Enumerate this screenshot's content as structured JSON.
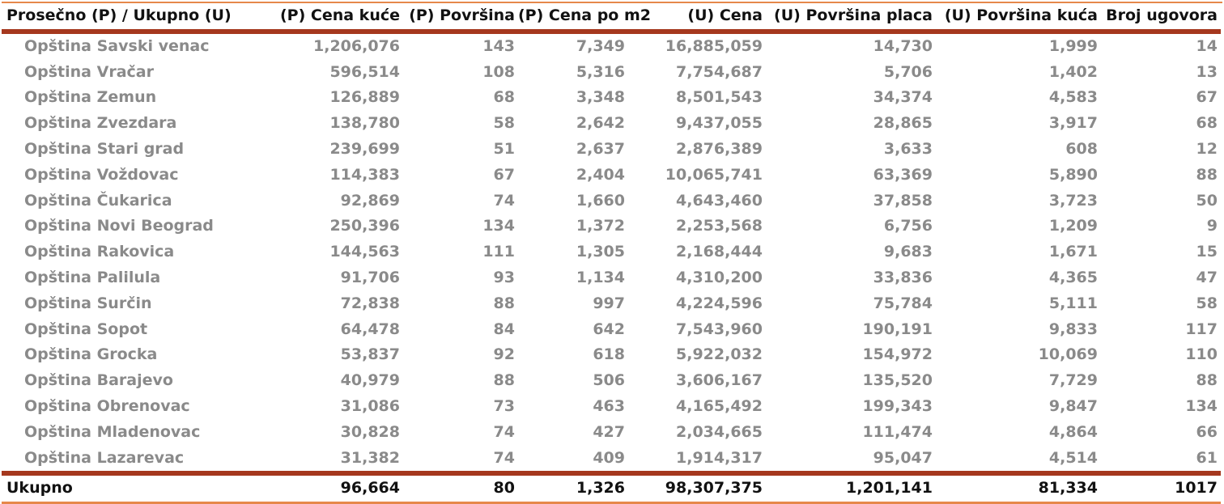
{
  "table": {
    "headers": [
      "Prosečno (P) / Ukupno (U)",
      "(P) Cena kuće",
      "(P) Površina",
      "(P) Cena po m2",
      "(U) Cena",
      "(U) Površina placa",
      "(U) Površina kuća",
      "Broj ugovora"
    ],
    "rows": [
      [
        "Opština Savski venac",
        "1,206,076",
        "143",
        "7,349",
        "16,885,059",
        "14,730",
        "1,999",
        "14"
      ],
      [
        "Opština Vračar",
        "596,514",
        "108",
        "5,316",
        "7,754,687",
        "5,706",
        "1,402",
        "13"
      ],
      [
        "Opština Zemun",
        "126,889",
        "68",
        "3,348",
        "8,501,543",
        "34,374",
        "4,583",
        "67"
      ],
      [
        "Opština Zvezdara",
        "138,780",
        "58",
        "2,642",
        "9,437,055",
        "28,865",
        "3,917",
        "68"
      ],
      [
        "Opština Stari grad",
        "239,699",
        "51",
        "2,637",
        "2,876,389",
        "3,633",
        "608",
        "12"
      ],
      [
        "Opština Voždovac",
        "114,383",
        "67",
        "2,404",
        "10,065,741",
        "63,369",
        "5,890",
        "88"
      ],
      [
        "Opština Čukarica",
        "92,869",
        "74",
        "1,660",
        "4,643,460",
        "37,858",
        "3,723",
        "50"
      ],
      [
        "Opština Novi Beograd",
        "250,396",
        "134",
        "1,372",
        "2,253,568",
        "6,756",
        "1,209",
        "9"
      ],
      [
        "Opština Rakovica",
        "144,563",
        "111",
        "1,305",
        "2,168,444",
        "9,683",
        "1,671",
        "15"
      ],
      [
        "Opština Palilula",
        "91,706",
        "93",
        "1,134",
        "4,310,200",
        "33,836",
        "4,365",
        "47"
      ],
      [
        "Opština Surčin",
        "72,838",
        "88",
        "997",
        "4,224,596",
        "75,784",
        "5,111",
        "58"
      ],
      [
        "Opština Sopot",
        "64,478",
        "84",
        "642",
        "7,543,960",
        "190,191",
        "9,833",
        "117"
      ],
      [
        "Opština Grocka",
        "53,837",
        "92",
        "618",
        "5,922,032",
        "154,972",
        "10,069",
        "110"
      ],
      [
        "Opština Barajevo",
        "40,979",
        "88",
        "506",
        "3,606,167",
        "135,520",
        "7,729",
        "88"
      ],
      [
        "Opština Obrenovac",
        "31,086",
        "73",
        "463",
        "4,165,492",
        "199,343",
        "9,847",
        "134"
      ],
      [
        "Opština Mladenovac",
        "30,828",
        "74",
        "427",
        "2,034,665",
        "111,474",
        "4,864",
        "66"
      ],
      [
        "Opština Lazarevac",
        "31,382",
        "74",
        "409",
        "1,914,317",
        "95,047",
        "4,514",
        "61"
      ]
    ],
    "total": [
      "Ukupno",
      "96,664",
      "80",
      "1,326",
      "98,307,375",
      "1,201,141",
      "81,334",
      "1017"
    ]
  },
  "colors": {
    "accent_orange": "#e6884a",
    "accent_rust": "#a5381e",
    "body_text": "#8a8a8a",
    "header_text": "#111111"
  }
}
